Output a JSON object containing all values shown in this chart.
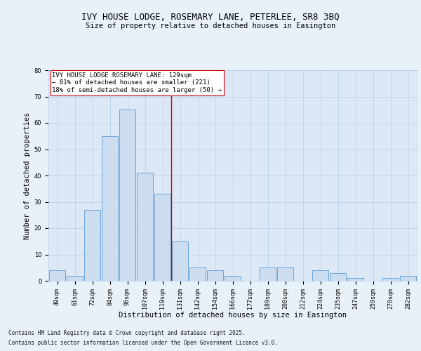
{
  "title": "IVY HOUSE LODGE, ROSEMARY LANE, PETERLEE, SR8 3BQ",
  "subtitle": "Size of property relative to detached houses in Easington",
  "xlabel": "Distribution of detached houses by size in Easington",
  "ylabel": "Number of detached properties",
  "categories": [
    "49sqm",
    "61sqm",
    "72sqm",
    "84sqm",
    "96sqm",
    "107sqm",
    "119sqm",
    "131sqm",
    "142sqm",
    "154sqm",
    "166sqm",
    "177sqm",
    "189sqm",
    "200sqm",
    "212sqm",
    "224sqm",
    "235sqm",
    "247sqm",
    "259sqm",
    "270sqm",
    "282sqm"
  ],
  "values": [
    4,
    2,
    27,
    55,
    65,
    41,
    33,
    15,
    5,
    4,
    2,
    0,
    5,
    5,
    0,
    4,
    3,
    1,
    0,
    1,
    2
  ],
  "bar_color": "#ccddf0",
  "bar_edge_color": "#5b9bd5",
  "vline_color": "#cc0000",
  "vline_x_index": 7,
  "annotation_text": "IVY HOUSE LODGE ROSEMARY LANE: 129sqm\n← 81% of detached houses are smaller (221)\n18% of semi-detached houses are larger (50) →",
  "annotation_box_color": "#ffffff",
  "annotation_box_edge_color": "#cc0000",
  "ylim": [
    0,
    80
  ],
  "yticks": [
    0,
    10,
    20,
    30,
    40,
    50,
    60,
    70,
    80
  ],
  "background_color": "#dce8f5",
  "plot_background_color": "#dce8f5",
  "outer_background_color": "#e8f0f8",
  "footer_line1": "Contains HM Land Registry data © Crown copyright and database right 2025.",
  "footer_line2": "Contains public sector information licensed under the Open Government Licence v3.0.",
  "title_fontsize": 9,
  "subtitle_fontsize": 7.5,
  "xlabel_fontsize": 7.5,
  "ylabel_fontsize": 7.5,
  "tick_fontsize": 6,
  "annotation_fontsize": 6.5,
  "footer_fontsize": 5.5,
  "grid_color": "#b8cfe8",
  "grid_linewidth": 0.5
}
